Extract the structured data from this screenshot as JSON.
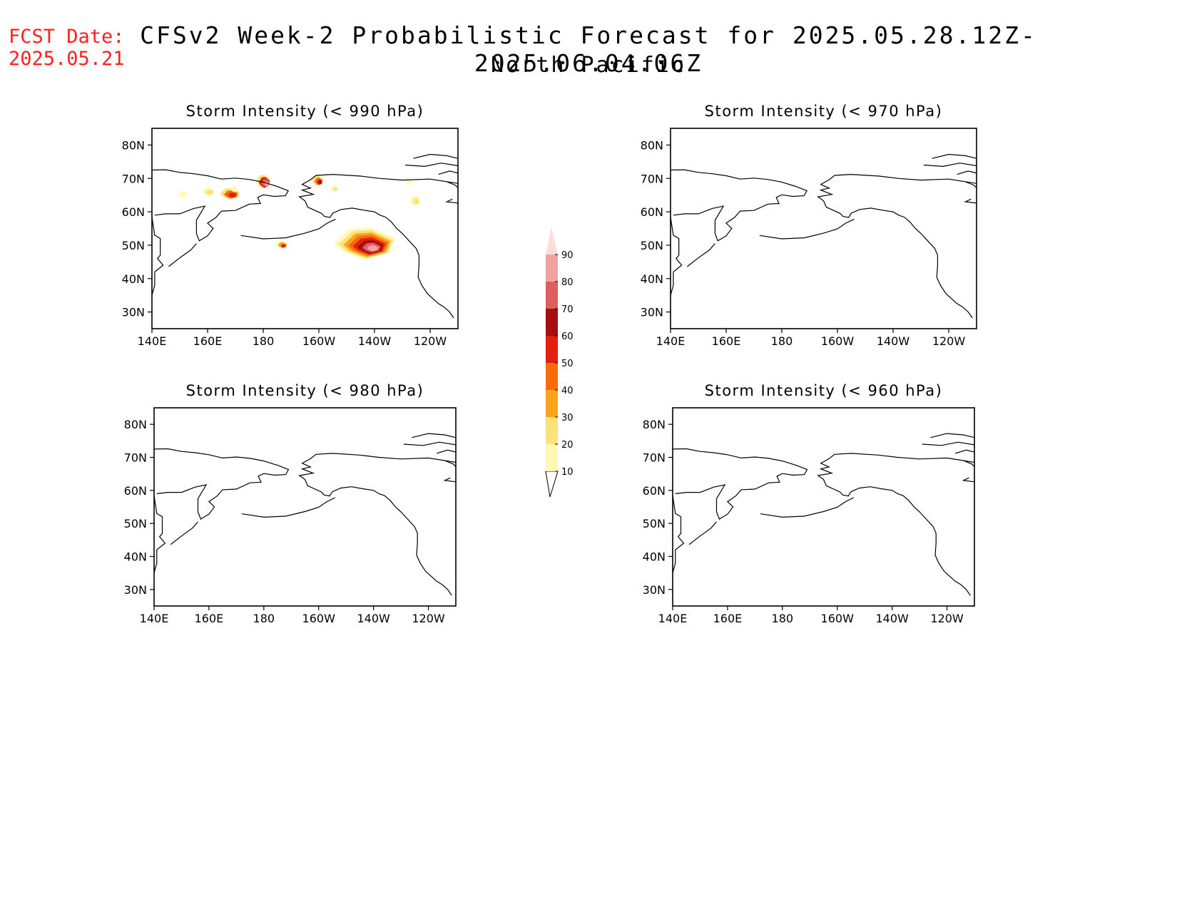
{
  "header": {
    "fcst_label": "FCST Date:",
    "fcst_date": "2025.05.21",
    "title": "CFSv2 Week-2 Probabilistic Forecast for 2025.05.28.12Z-2025.06.04.06Z",
    "subtitle": "North Pacific"
  },
  "axes": {
    "lat_ticks": [
      "80N",
      "70N",
      "60N",
      "50N",
      "40N",
      "30N"
    ],
    "lon_ticks": [
      "140E",
      "160E",
      "180",
      "160W",
      "140W",
      "120W"
    ]
  },
  "panels": [
    {
      "id": "p990",
      "title": "Storm Intensity (< 990 hPa)"
    },
    {
      "id": "p970",
      "title": "Storm Intensity (< 970 hPa)"
    },
    {
      "id": "p980",
      "title": "Storm Intensity (< 980 hPa)"
    },
    {
      "id": "p960",
      "title": "Storm Intensity (< 960 hPa)"
    }
  ],
  "colorbar": {
    "labels": [
      "10",
      "20",
      "30",
      "40",
      "50",
      "60",
      "70",
      "80",
      "90"
    ],
    "colors": [
      "#fff9b4",
      "#fde27c",
      "#fca31c",
      "#fb6a0e",
      "#e2200f",
      "#a50f0f",
      "#dd5f5f",
      "#f2a2a2",
      "#fddcdc"
    ]
  },
  "chart_data": {
    "type": "heatmap",
    "xlim": [
      "140E",
      "110W"
    ],
    "ylim": [
      "25N",
      "85N"
    ],
    "panels": [
      {
        "title": "Storm Intensity (< 990 hPa)",
        "probability_regions": [
          {
            "lon": 170,
            "lat": 65,
            "max_prob": 50
          },
          {
            "lon": 160,
            "lat": 66,
            "max_prob": 20
          },
          {
            "lon": 180,
            "lat": 69,
            "max_prob": 70
          },
          {
            "lon": 200,
            "lat": 69,
            "max_prob": 60
          },
          {
            "lon": 205,
            "lat": 67,
            "max_prob": 20
          },
          {
            "lon": 235,
            "lat": 63,
            "max_prob": 20
          },
          {
            "lon": 187,
            "lat": 50,
            "max_prob": 50
          },
          {
            "lon": 216,
            "lat": 50,
            "max_prob": 80
          }
        ]
      },
      {
        "title": "Storm Intensity (< 970 hPa)",
        "probability_regions": []
      },
      {
        "title": "Storm Intensity (< 980 hPa)",
        "probability_regions": []
      },
      {
        "title": "Storm Intensity (< 960 hPa)",
        "probability_regions": []
      }
    ]
  }
}
